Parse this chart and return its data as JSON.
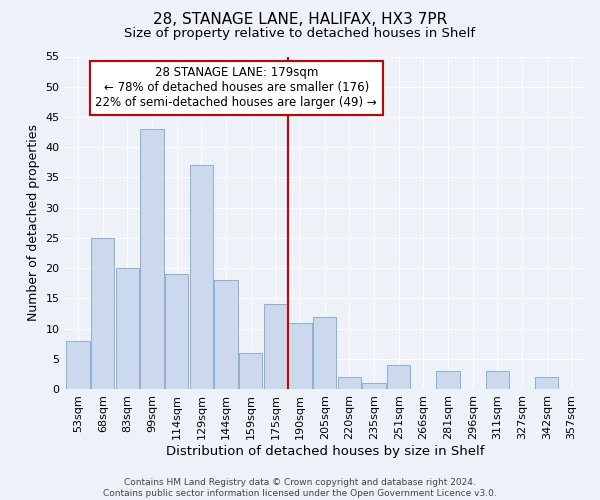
{
  "title": "28, STANAGE LANE, HALIFAX, HX3 7PR",
  "subtitle": "Size of property relative to detached houses in Shelf",
  "xlabel": "Distribution of detached houses by size in Shelf",
  "ylabel": "Number of detached properties",
  "bar_labels": [
    "53sqm",
    "68sqm",
    "83sqm",
    "99sqm",
    "114sqm",
    "129sqm",
    "144sqm",
    "159sqm",
    "175sqm",
    "190sqm",
    "205sqm",
    "220sqm",
    "235sqm",
    "251sqm",
    "266sqm",
    "281sqm",
    "296sqm",
    "311sqm",
    "327sqm",
    "342sqm",
    "357sqm"
  ],
  "bar_values": [
    8,
    25,
    20,
    43,
    19,
    37,
    18,
    6,
    14,
    11,
    12,
    2,
    1,
    4,
    0,
    3,
    0,
    3,
    0,
    2,
    0
  ],
  "bar_color": "#ccd9ec",
  "bar_edge_color": "#8cafd4",
  "reference_line_color": "#cc0000",
  "reference_line_x": 8.5,
  "annotation_line1": "28 STANAGE LANE: 179sqm",
  "annotation_line2": "← 78% of detached houses are smaller (176)",
  "annotation_line3": "22% of semi-detached houses are larger (49) →",
  "annotation_box_edge_color": "#cc0000",
  "ylim": [
    0,
    55
  ],
  "yticks": [
    0,
    5,
    10,
    15,
    20,
    25,
    30,
    35,
    40,
    45,
    50,
    55
  ],
  "footer_text": "Contains HM Land Registry data © Crown copyright and database right 2024.\nContains public sector information licensed under the Open Government Licence v3.0.",
  "bg_color": "#edf2f9",
  "grid_color": "#ffffff",
  "title_fontsize": 11,
  "subtitle_fontsize": 9.5,
  "xlabel_fontsize": 9.5,
  "ylabel_fontsize": 9,
  "tick_fontsize": 8,
  "annotation_fontsize": 8.5,
  "footer_fontsize": 6.5
}
